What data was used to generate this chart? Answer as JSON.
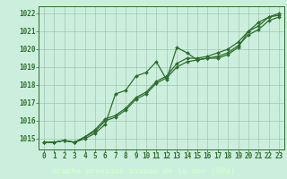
{
  "title": "Graphe pression niveau de la mer (hPa)",
  "background_color": "#cceedd",
  "plot_bg": "#cceedd",
  "bottom_bar_color": "#336633",
  "line_color": "#2d6e2d",
  "grid_color": "#99bbaa",
  "xlim": [
    -0.5,
    23.5
  ],
  "ylim": [
    1014.4,
    1022.4
  ],
  "yticks": [
    1015,
    1016,
    1017,
    1018,
    1019,
    1020,
    1021,
    1022
  ],
  "xticks": [
    0,
    1,
    2,
    3,
    4,
    5,
    6,
    7,
    8,
    9,
    10,
    11,
    12,
    13,
    14,
    15,
    16,
    17,
    18,
    19,
    20,
    21,
    22,
    23
  ],
  "series1_x": [
    0,
    1,
    2,
    3,
    4,
    5,
    6,
    7,
    8,
    9,
    10,
    11,
    12,
    13,
    14,
    15,
    16,
    17,
    18,
    19,
    20,
    21,
    22,
    23
  ],
  "series1_y": [
    1014.8,
    1014.8,
    1014.9,
    1014.8,
    1015.0,
    1015.3,
    1015.8,
    1017.5,
    1017.7,
    1018.5,
    1018.7,
    1019.3,
    1018.3,
    1020.1,
    1019.8,
    1019.4,
    1019.5,
    1019.5,
    1019.7,
    1020.1,
    1021.0,
    1021.5,
    1021.8,
    1021.9
  ],
  "series2_x": [
    0,
    1,
    2,
    3,
    4,
    5,
    6,
    7,
    8,
    9,
    10,
    11,
    12,
    13,
    14,
    15,
    16,
    17,
    18,
    19,
    20,
    21,
    22,
    23
  ],
  "series2_y": [
    1014.8,
    1014.8,
    1014.9,
    1014.8,
    1015.1,
    1015.4,
    1016.0,
    1016.2,
    1016.6,
    1017.2,
    1017.5,
    1018.1,
    1018.4,
    1019.0,
    1019.3,
    1019.4,
    1019.5,
    1019.6,
    1019.8,
    1020.2,
    1020.8,
    1021.1,
    1021.6,
    1021.8
  ],
  "series3_x": [
    0,
    1,
    2,
    3,
    4,
    5,
    6,
    7,
    8,
    9,
    10,
    11,
    12,
    13,
    14,
    15,
    16,
    17,
    18,
    19,
    20,
    21,
    22,
    23
  ],
  "series3_y": [
    1014.8,
    1014.8,
    1014.9,
    1014.8,
    1015.1,
    1015.5,
    1016.1,
    1016.3,
    1016.7,
    1017.3,
    1017.6,
    1018.2,
    1018.5,
    1019.2,
    1019.5,
    1019.5,
    1019.6,
    1019.8,
    1020.0,
    1020.4,
    1021.0,
    1021.3,
    1021.8,
    1022.0
  ],
  "markersize": 2.0,
  "linewidth": 0.9,
  "tick_fontsize": 5.5,
  "title_fontsize": 6.5
}
